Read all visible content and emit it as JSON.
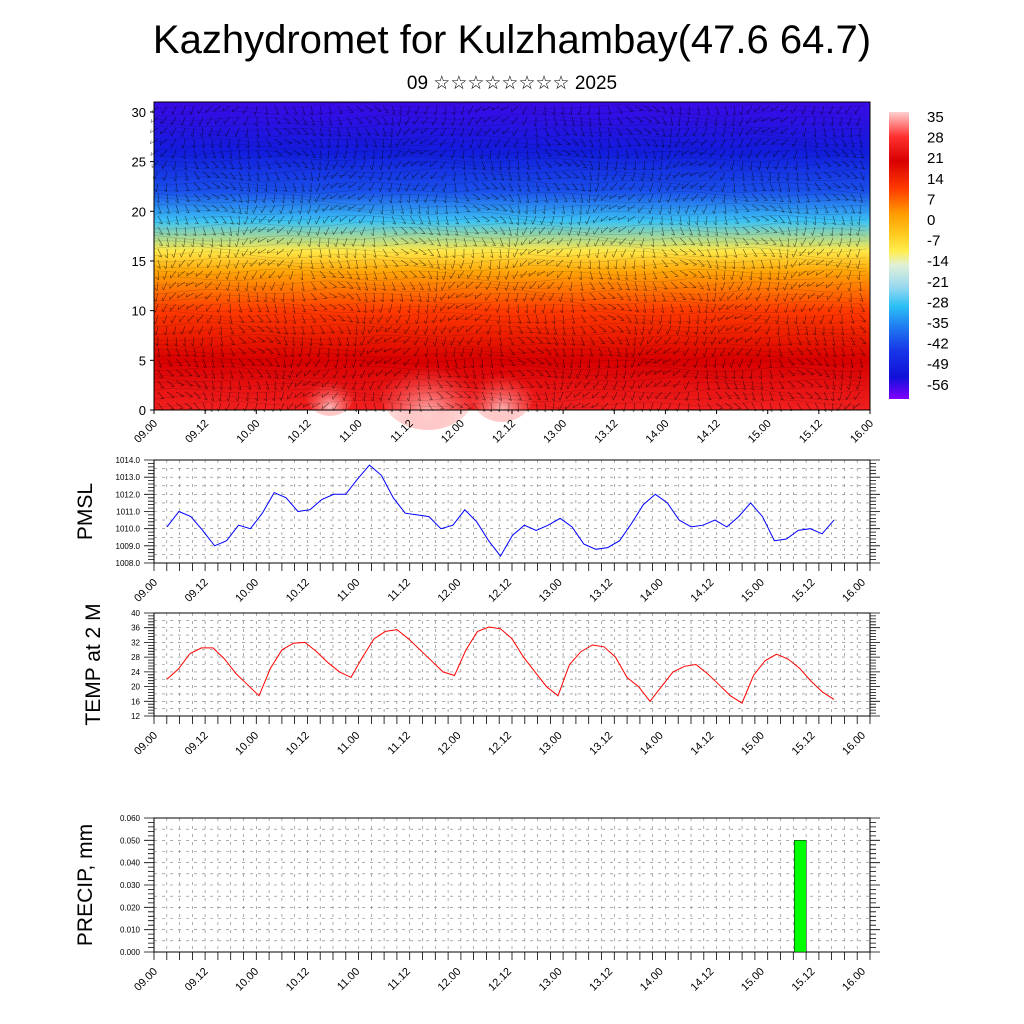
{
  "header": {
    "title": "Kazhydromet for Kulzhambay(47.6 64.7)",
    "subtitle": "09 ☆☆☆☆☆☆☆☆ 2025"
  },
  "chart_data": [
    {
      "type": "heatmap",
      "name": "cross-section",
      "x_tick_labels": [
        "09.00",
        "09.12",
        "10.00",
        "10.12",
        "11.00",
        "11.12",
        "12.00",
        "12.12",
        "13.00",
        "13.12",
        "14.00",
        "14.12",
        "15.00",
        "15.12",
        "16.00"
      ],
      "ylim": [
        0,
        31
      ],
      "y_ticks": [
        0,
        5,
        10,
        15,
        20,
        25,
        30
      ],
      "colorbar_labels": [
        "35",
        "28",
        "21",
        "14",
        "7",
        "0",
        "-7",
        "-14",
        "-21",
        "-28",
        "-35",
        "-42",
        "-49",
        "-56"
      ],
      "colorbar_range": [
        -63,
        42
      ],
      "colors": {
        "warm": "#d90000",
        "orange": "#ff9a00",
        "yellow": "#ffee50",
        "cyan": "#2cc0f5",
        "blue": "#1010d8",
        "violet": "#8000ff"
      },
      "temperature_profile": [
        {
          "height": 0,
          "temp": 30
        },
        {
          "height": 5,
          "temp": 24
        },
        {
          "height": 10,
          "temp": 14
        },
        {
          "height": 14,
          "temp": 3
        },
        {
          "height": 16,
          "temp": -8
        },
        {
          "height": 19,
          "temp": -28
        },
        {
          "height": 22,
          "temp": -42
        },
        {
          "height": 26,
          "temp": -52
        },
        {
          "height": 31,
          "temp": -58
        }
      ]
    },
    {
      "type": "line",
      "name": "PMSL",
      "ylabel": "PMSL",
      "ylim": [
        1008.0,
        1014.0
      ],
      "y_tick_labels": [
        "1008.0",
        "1009.0",
        "1010.0",
        "1011.0",
        "1012.0",
        "1013.0",
        "1014.0"
      ],
      "x_tick_labels": [
        "09.00",
        "09.12",
        "10.00",
        "10.12",
        "11.00",
        "11.12",
        "12.00",
        "12.12",
        "13.00",
        "13.12",
        "14.00",
        "14.12",
        "15.00",
        "15.12",
        "16.00"
      ],
      "color": "#0000ff",
      "series": [
        {
          "values": [
            1010.1,
            1011.0,
            1010.7,
            1009.9,
            1009.0,
            1009.3,
            1010.2,
            1010.0,
            1010.9,
            1012.1,
            1011.8,
            1011.0,
            1011.1,
            1011.7,
            1012.0,
            1012.0,
            1012.9,
            1013.7,
            1013.1,
            1011.8,
            1010.9,
            1010.8,
            1010.7,
            1010.0,
            1010.2,
            1011.1,
            1010.4,
            1009.3,
            1008.4,
            1009.6,
            1010.2,
            1009.9,
            1010.2,
            1010.6,
            1010.1,
            1009.1,
            1008.8,
            1008.9,
            1009.3,
            1010.3,
            1011.4,
            1012.0,
            1011.5,
            1010.5,
            1010.1,
            1010.2,
            1010.5,
            1010.1,
            1010.7,
            1011.5,
            1010.7,
            1009.3,
            1009.4,
            1009.9,
            1010.0,
            1009.7,
            1010.5
          ]
        }
      ]
    },
    {
      "type": "line",
      "name": "TEMP at 2 M",
      "ylabel": "TEMP at 2 M",
      "ylim": [
        12,
        40
      ],
      "y_tick_labels": [
        "12",
        "16",
        "20",
        "24",
        "28",
        "32",
        "36",
        "40"
      ],
      "x_tick_labels": [
        "09.00",
        "09.12",
        "10.00",
        "10.12",
        "11.00",
        "11.12",
        "12.00",
        "12.12",
        "13.00",
        "13.12",
        "14.00",
        "14.12",
        "15.00",
        "15.12",
        "16.00"
      ],
      "color": "#ff0000",
      "series": [
        {
          "values": [
            22.0,
            24.8,
            29.0,
            30.5,
            30.5,
            27.5,
            23.5,
            20.5,
            17.5,
            25.0,
            30.0,
            31.8,
            32.0,
            29.5,
            26.5,
            24.0,
            22.5,
            28.0,
            33.0,
            35.0,
            35.5,
            33.0,
            30.0,
            27.0,
            24.0,
            23.0,
            30.0,
            35.0,
            36.2,
            35.7,
            33.0,
            28.0,
            24.0,
            20.0,
            17.5,
            26.0,
            29.5,
            31.3,
            30.8,
            28.0,
            22.5,
            20.0,
            16.0,
            20.0,
            24.0,
            25.5,
            26.0,
            23.5,
            20.5,
            17.5,
            15.5,
            23.0,
            27.0,
            28.8,
            27.5,
            25.0,
            21.5,
            18.5,
            16.5
          ]
        }
      ]
    },
    {
      "type": "bar",
      "name": "PRECIP",
      "ylabel": "PRECIP, mm",
      "ylim": [
        0,
        0.06
      ],
      "y_tick_labels": [
        "0.000",
        "0.010",
        "0.020",
        "0.030",
        "0.040",
        "0.050",
        "0.060"
      ],
      "x_tick_labels": [
        "09.00",
        "09.12",
        "10.00",
        "10.12",
        "11.00",
        "11.12",
        "12.00",
        "12.12",
        "13.00",
        "13.12",
        "14.00",
        "14.12",
        "15.00",
        "15.12",
        "16.00"
      ],
      "color": "#00ff00",
      "bars": [
        {
          "x_hours": 152,
          "value": 0.05
        }
      ]
    }
  ]
}
